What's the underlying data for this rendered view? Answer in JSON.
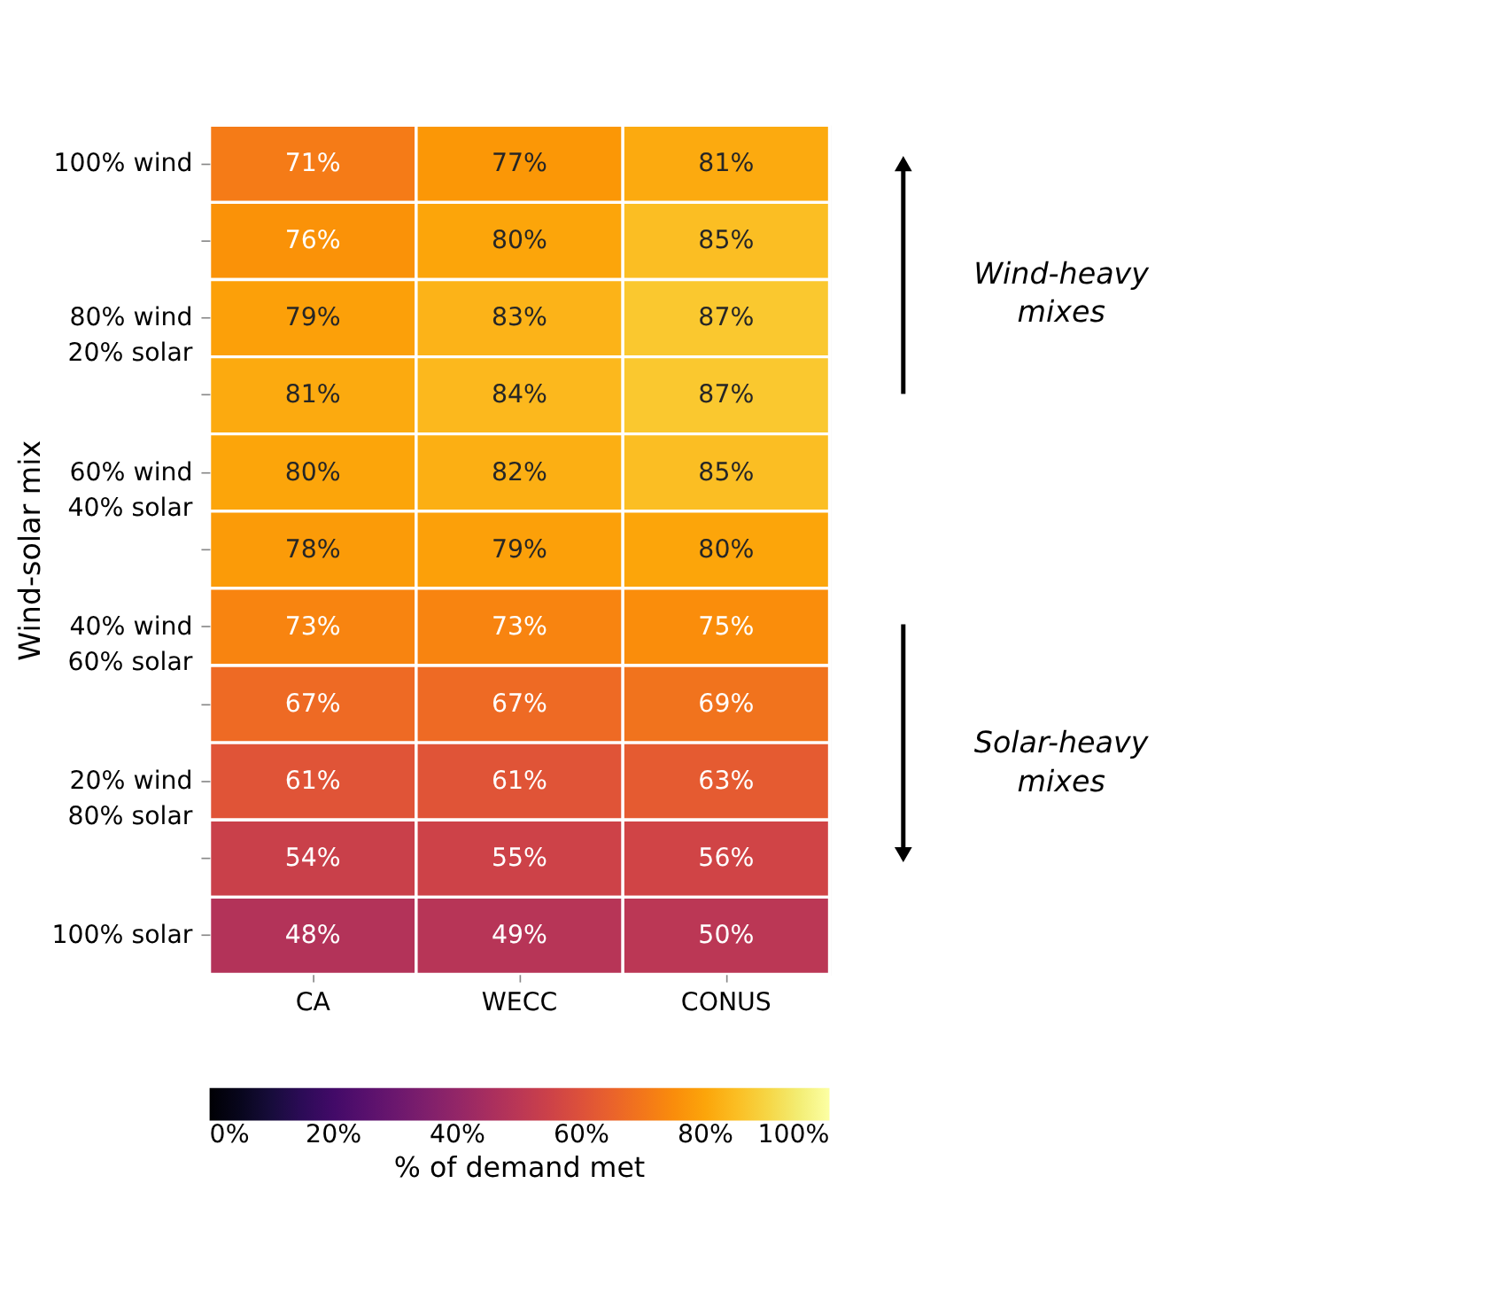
{
  "chart_data": {
    "type": "heatmap",
    "ylabel": "Wind-solar mix",
    "clabel": "% of demand met",
    "categories": [
      "CA",
      "WECC",
      "CONUS"
    ],
    "y_categories": [
      "100% wind",
      null,
      "80% wind\n20% solar",
      null,
      "60% wind\n40% solar",
      null,
      "40% wind\n60% solar",
      null,
      "20% wind\n80% solar",
      null,
      "100% solar"
    ],
    "cells": [
      [
        71,
        77,
        81
      ],
      [
        76,
        80,
        85
      ],
      [
        79,
        83,
        87
      ],
      [
        81,
        84,
        87
      ],
      [
        80,
        82,
        85
      ],
      [
        78,
        79,
        80
      ],
      [
        73,
        73,
        75
      ],
      [
        67,
        67,
        69
      ],
      [
        61,
        61,
        63
      ],
      [
        54,
        55,
        56
      ],
      [
        48,
        49,
        50
      ]
    ],
    "cell_labels": [
      [
        "71%",
        "77%",
        "81%"
      ],
      [
        "76%",
        "80%",
        "85%"
      ],
      [
        "79%",
        "83%",
        "87%"
      ],
      [
        "81%",
        "84%",
        "87%"
      ],
      [
        "80%",
        "82%",
        "85%"
      ],
      [
        "78%",
        "79%",
        "80%"
      ],
      [
        "73%",
        "73%",
        "75%"
      ],
      [
        "67%",
        "67%",
        "69%"
      ],
      [
        "61%",
        "61%",
        "63%"
      ],
      [
        "54%",
        "55%",
        "56%"
      ],
      [
        "48%",
        "49%",
        "50%"
      ]
    ],
    "clim": [
      0,
      100
    ],
    "cticks": [
      {
        "value": 0,
        "label": "0%"
      },
      {
        "value": 20,
        "label": "20%"
      },
      {
        "value": 40,
        "label": "40%"
      },
      {
        "value": 60,
        "label": "60%"
      },
      {
        "value": 80,
        "label": "80%"
      },
      {
        "value": 100,
        "label": "100%"
      }
    ],
    "annotations": [
      "Wind-heavy mixes",
      "Solar-heavy mixes"
    ]
  }
}
